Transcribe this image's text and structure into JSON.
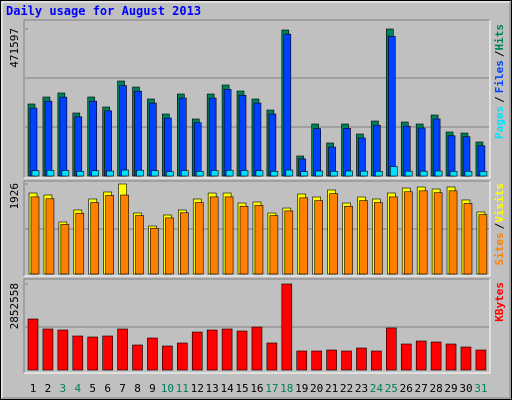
{
  "chart_data": [
    {
      "type": "bar",
      "title": "Daily usage for August 2013",
      "legend_separator": "/",
      "ylim": [
        0,
        471597
      ],
      "yticks": [
        471597
      ],
      "grid_lines": [
        157199,
        314398
      ],
      "series": [
        {
          "name": "Hits",
          "color": "#00805c",
          "values": [
            231000,
            253400,
            266300,
            202100,
            253400,
            221400,
            304800,
            285500,
            247000,
            198900,
            263100,
            182900,
            263100,
            291900,
            272700,
            247000,
            211700,
            468400,
            64200,
            166800,
            105900,
            166800,
            134700,
            176400,
            471597,
            173200,
            166800,
            195700,
            141200,
            137900,
            109100
          ]
        },
        {
          "name": "Files",
          "color": "#0040ff",
          "values": [
            218000,
            240000,
            253000,
            190000,
            240000,
            209000,
            290000,
            272000,
            234000,
            186000,
            250000,
            171000,
            250000,
            278000,
            259000,
            234000,
            199000,
            455000,
            55000,
            152000,
            93000,
            153000,
            122000,
            163000,
            448000,
            160000,
            154000,
            183000,
            129000,
            126000,
            97000
          ]
        },
        {
          "name": "Pages",
          "color": "#00e0ff",
          "values": [
            17000,
            18000,
            17500,
            15000,
            17000,
            16000,
            19000,
            18500,
            17000,
            14000,
            17000,
            15000,
            17500,
            18000,
            17500,
            17000,
            15000,
            19000,
            14000,
            16000,
            15000,
            16000,
            15500,
            15000,
            30000,
            15500,
            15500,
            16000,
            15000,
            15000,
            14500
          ]
        }
      ]
    },
    {
      "type": "bar",
      "legend_separator": "/",
      "ylim": [
        0,
        1926
      ],
      "yticks": [
        1926
      ],
      "grid_lines": [
        963
      ],
      "series": [
        {
          "name": "Visits",
          "color": "#ffff00",
          "values": [
            1733,
            1691,
            1113,
            1370,
            1605,
            1755,
            1926,
            1305,
            1027,
            1263,
            1370,
            1605,
            1733,
            1733,
            1519,
            1541,
            1305,
            1412,
            1712,
            1648,
            1798,
            1519,
            1648,
            1605,
            1733,
            1840,
            1862,
            1819,
            1862,
            1584,
            1327
          ]
        },
        {
          "name": "Sites",
          "color": "#ff8000",
          "values": [
            1650,
            1610,
            1060,
            1300,
            1530,
            1680,
            1690,
            1250,
            980,
            1200,
            1310,
            1530,
            1650,
            1650,
            1450,
            1470,
            1250,
            1350,
            1630,
            1570,
            1720,
            1450,
            1570,
            1530,
            1650,
            1760,
            1780,
            1740,
            1780,
            1510,
            1270
          ]
        }
      ]
    },
    {
      "type": "bar",
      "ylim": [
        0,
        2852558
      ],
      "yticks": [
        2852558
      ],
      "grid_lines": [
        1426279
      ],
      "categories": [
        "1",
        "2",
        "3",
        "4",
        "5",
        "6",
        "7",
        "8",
        "9",
        "10",
        "11",
        "12",
        "13",
        "14",
        "15",
        "16",
        "17",
        "18",
        "19",
        "20",
        "21",
        "22",
        "23",
        "24",
        "25",
        "26",
        "27",
        "28",
        "29",
        "30",
        "31"
      ],
      "category_colors": [
        "#000000",
        "#000000",
        "#00805c",
        "#00805c",
        "#000000",
        "#000000",
        "#000000",
        "#000000",
        "#000000",
        "#00805c",
        "#00805c",
        "#000000",
        "#000000",
        "#000000",
        "#000000",
        "#000000",
        "#00805c",
        "#00805c",
        "#000000",
        "#000000",
        "#000000",
        "#000000",
        "#000000",
        "#00805c",
        "#00805c",
        "#000000",
        "#000000",
        "#000000",
        "#000000",
        "#000000",
        "#00805c"
      ],
      "series": [
        {
          "name": "KBytes",
          "color": "#ff0000",
          "values": [
            1691600,
            1359900,
            1326800,
            1127700,
            1094600,
            1127700,
            1359900,
            829200,
            1061400,
            796100,
            895600,
            1260400,
            1326800,
            1359900,
            1293600,
            1426300,
            895600,
            2852558,
            630200,
            630200,
            663400,
            630200,
            729700,
            630200,
            1393100,
            862400,
            961900,
            928700,
            862400,
            762900,
            663400
          ]
        }
      ]
    }
  ]
}
